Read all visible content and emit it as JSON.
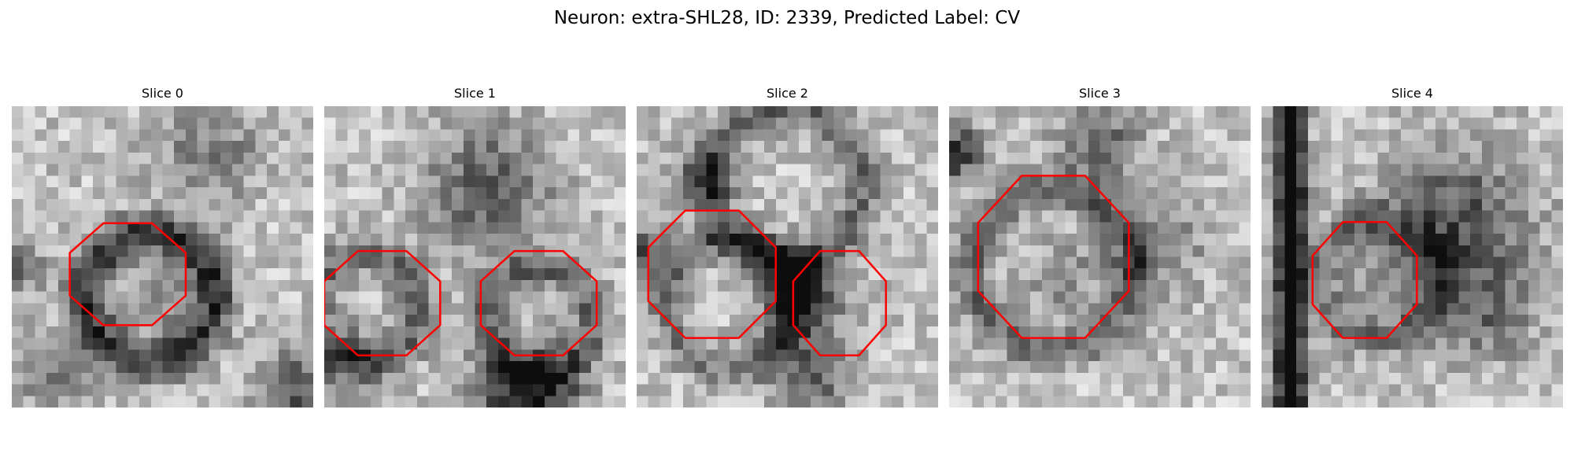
{
  "figure": {
    "title": "Neuron: extra-SHL28, ID: 2339, Predicted Label: CV"
  },
  "slices": [
    {
      "title": "Slice 0"
    },
    {
      "title": "Slice 1"
    },
    {
      "title": "Slice 2"
    },
    {
      "title": "Slice 3"
    },
    {
      "title": "Slice 4"
    }
  ],
  "colors": {
    "contour": "#ff0000",
    "image_colormap": "gray"
  }
}
